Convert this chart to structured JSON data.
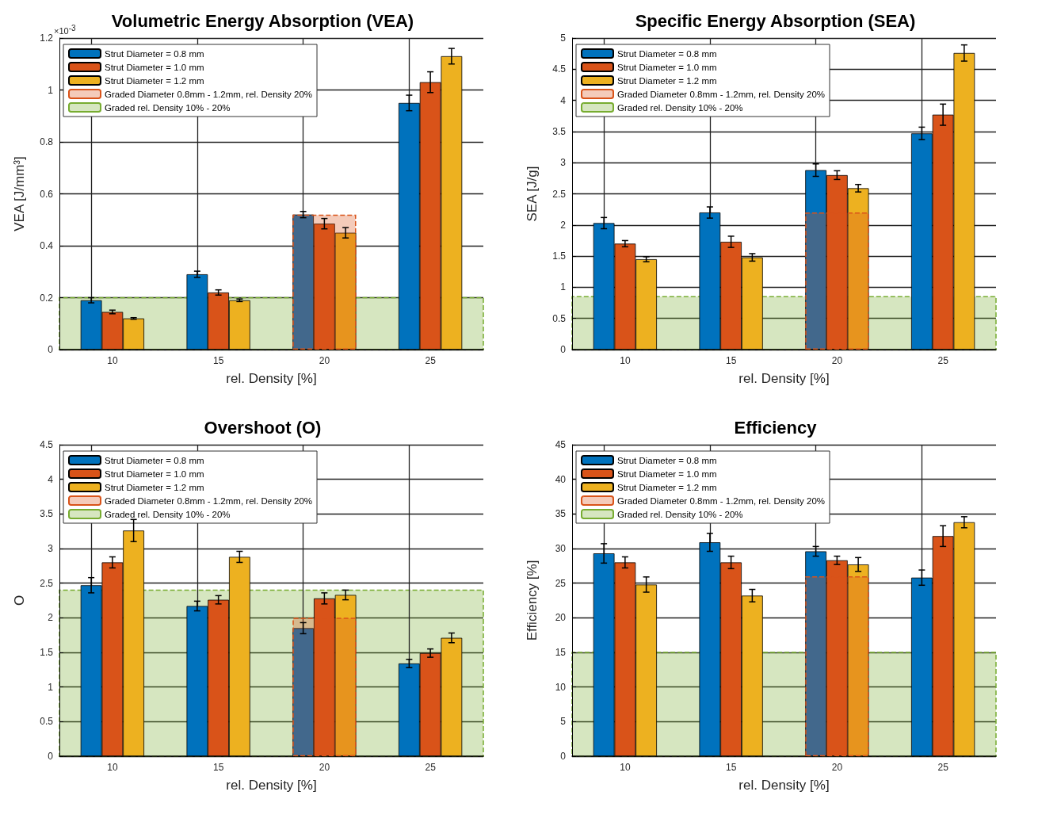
{
  "chart_data": [
    {
      "type": "bar",
      "title": "Volumetric Energy Absorption (VEA)",
      "xlabel": "rel. Density [%]",
      "ylabel": "VEA [J/mm³]",
      "annotations": [
        "×10$^{-3}$"
      ],
      "categories": [
        "10",
        "15",
        "20",
        "25"
      ],
      "ylim": [
        0,
        1.2
      ],
      "yticks": [
        0,
        0.2,
        0.4,
        0.6,
        0.8,
        1,
        1.2
      ],
      "grid": true,
      "legend": "top left",
      "series": [
        {
          "name": "Strut Diameter = 0.8 mm",
          "color": "#0072bd",
          "values": [
            0.19,
            0.29,
            0.52,
            0.95
          ],
          "errors": [
            0.01,
            0.012,
            0.012,
            0.03
          ]
        },
        {
          "name": "Strut Diameter = 1.0 mm",
          "color": "#d95319",
          "values": [
            0.145,
            0.22,
            0.485,
            1.03
          ],
          "errors": [
            0.007,
            0.01,
            0.02,
            0.04
          ]
        },
        {
          "name": "Strut Diameter = 1.2 mm",
          "color": "#edb120",
          "values": [
            0.12,
            0.19,
            0.45,
            1.13
          ],
          "errors": [
            0.003,
            0.005,
            0.02,
            0.03
          ]
        },
        {
          "name": "Graded Diameter 0.8mm - 1.2mm, rel. Density 20%",
          "color": "#d95319",
          "values": [
            null,
            null,
            0.52,
            null
          ],
          "line_style": "dashed"
        }
      ],
      "bands": [
        {
          "axis": "y",
          "from": 0,
          "to": 0.2,
          "label": "Graded rel. Density 10% - 20%",
          "color": "#77ac30"
        }
      ]
    },
    {
      "type": "bar",
      "title": "Specific Energy Absorption (SEA)",
      "xlabel": "rel. Density [%]",
      "ylabel": "SEA [J/g]",
      "categories": [
        "10",
        "15",
        "20",
        "25"
      ],
      "ylim": [
        0,
        5
      ],
      "yticks": [
        0,
        0.5,
        1,
        1.5,
        2,
        2.5,
        3,
        3.5,
        4,
        4.5,
        5
      ],
      "grid": true,
      "legend": "top left",
      "series": [
        {
          "name": "Strut Diameter = 0.8 mm",
          "color": "#0072bd",
          "values": [
            2.03,
            2.2,
            2.88,
            3.47
          ],
          "errors": [
            0.09,
            0.09,
            0.1,
            0.1
          ]
        },
        {
          "name": "Strut Diameter = 1.0 mm",
          "color": "#d95319",
          "values": [
            1.7,
            1.73,
            2.8,
            3.77
          ],
          "errors": [
            0.05,
            0.09,
            0.07,
            0.17
          ]
        },
        {
          "name": "Strut Diameter = 1.2 mm",
          "color": "#edb120",
          "values": [
            1.45,
            1.48,
            2.59,
            4.76
          ],
          "errors": [
            0.04,
            0.06,
            0.06,
            0.13
          ]
        },
        {
          "name": "Graded Diameter 0.8mm - 1.2mm, rel. Density 20%",
          "color": "#d95319",
          "values": [
            null,
            null,
            2.2,
            null
          ],
          "line_style": "dashed"
        }
      ],
      "bands": [
        {
          "axis": "y",
          "from": 0,
          "to": 0.85,
          "label": "Graded rel. Density 10% - 20%",
          "color": "#77ac30"
        }
      ]
    },
    {
      "type": "bar",
      "title": "Overshoot (O)",
      "xlabel": "rel. Density [%]",
      "ylabel": "O",
      "categories": [
        "10",
        "15",
        "20",
        "25"
      ],
      "ylim": [
        0,
        4.5
      ],
      "yticks": [
        0,
        0.5,
        1,
        1.5,
        2,
        2.5,
        3,
        3.5,
        4,
        4.5
      ],
      "grid": true,
      "legend": "top left",
      "series": [
        {
          "name": "Strut Diameter = 0.8 mm",
          "color": "#0072bd",
          "values": [
            2.47,
            2.17,
            1.85,
            1.34
          ],
          "errors": [
            0.11,
            0.07,
            0.08,
            0.06
          ]
        },
        {
          "name": "Strut Diameter = 1.0 mm",
          "color": "#d95319",
          "values": [
            2.8,
            2.26,
            2.28,
            1.49
          ],
          "errors": [
            0.08,
            0.06,
            0.08,
            0.06
          ]
        },
        {
          "name": "Strut Diameter = 1.2 mm",
          "color": "#edb120",
          "values": [
            3.26,
            2.88,
            2.33,
            1.71
          ],
          "errors": [
            0.16,
            0.08,
            0.07,
            0.07
          ]
        },
        {
          "name": "Graded Diameter 0.8mm - 1.2mm, rel. Density 20%",
          "color": "#d95319",
          "values": [
            null,
            null,
            2.0,
            null
          ],
          "line_style": "dashed"
        }
      ],
      "bands": [
        {
          "axis": "y",
          "from": 0,
          "to": 2.4,
          "label": "Graded rel. Density 10% - 20%",
          "color": "#77ac30"
        }
      ]
    },
    {
      "type": "bar",
      "title": "Efficiency",
      "xlabel": "rel. Density [%]",
      "ylabel": "Efficiency [%]",
      "categories": [
        "10",
        "15",
        "20",
        "25"
      ],
      "ylim": [
        0,
        45
      ],
      "yticks": [
        0,
        5,
        10,
        15,
        20,
        25,
        30,
        35,
        40,
        45
      ],
      "grid": true,
      "legend": "top left",
      "series": [
        {
          "name": "Strut Diameter = 0.8 mm",
          "color": "#0072bd",
          "values": [
            29.3,
            30.9,
            29.6,
            25.8
          ],
          "errors": [
            1.4,
            1.3,
            0.7,
            1.1
          ]
        },
        {
          "name": "Strut Diameter = 1.0 mm",
          "color": "#d95319",
          "values": [
            28,
            28,
            28.3,
            31.8
          ],
          "errors": [
            0.8,
            0.9,
            0.6,
            1.5
          ]
        },
        {
          "name": "Strut Diameter = 1.2 mm",
          "color": "#edb120",
          "values": [
            24.8,
            23.2,
            27.7,
            33.8
          ],
          "errors": [
            1.1,
            0.9,
            1.0,
            0.8
          ]
        },
        {
          "name": "Graded Diameter 0.8mm - 1.2mm, rel. Density 20%",
          "color": "#d95319",
          "values": [
            null,
            null,
            26,
            null
          ],
          "line_style": "dashed"
        }
      ],
      "bands": [
        {
          "axis": "y",
          "from": 0,
          "to": 15,
          "label": "Graded rel. Density 10% - 20%",
          "color": "#77ac30"
        }
      ]
    }
  ]
}
